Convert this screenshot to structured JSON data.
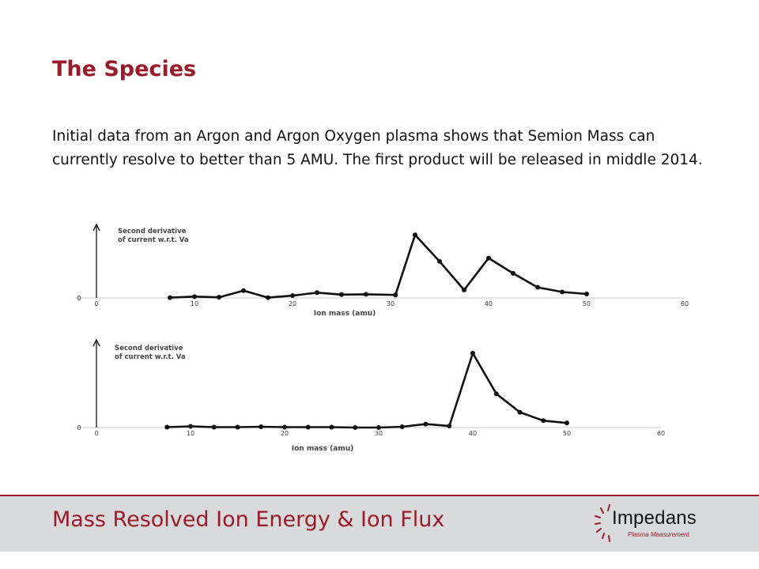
{
  "slide": {
    "title": "The Species",
    "body": "Initial data from an Argon and Argon Oxygen plasma shows that Semion Mass can currently resolve to better than 5 AMU. The first product will be released in middle 2014."
  },
  "footer": {
    "title": "Mass Resolved Ion Energy & Ion Flux",
    "logo_name": "Impedans",
    "logo_sub": "Plasma Measurement"
  },
  "colors": {
    "accent": "#9b1b2a",
    "footer_bg": "#d9dadb",
    "plot_line": "#111111"
  },
  "chart_data": [
    {
      "type": "line",
      "xlabel": "Ion mass (amu)",
      "ylabel": "Second derivative of current  w.r.t. Va",
      "xlim": [
        0,
        60
      ],
      "xticks": [
        "0",
        "10",
        "20",
        "30",
        "40",
        "50",
        "60"
      ],
      "y_origin_label": "0",
      "ylim": [
        0,
        10
      ],
      "grid": false,
      "series": [
        {
          "x": [
            7.5,
            10,
            12.5,
            15,
            17.5,
            20,
            22.5,
            25,
            27.5,
            30.5,
            32.5,
            35,
            37.5,
            40,
            42.5,
            45,
            47.5,
            50
          ],
          "y": [
            0.05,
            0.2,
            0.1,
            1.1,
            0.05,
            0.35,
            0.8,
            0.5,
            0.55,
            0.45,
            9.5,
            5.5,
            1.2,
            6.0,
            3.7,
            1.6,
            0.9,
            0.6
          ]
        }
      ]
    },
    {
      "type": "line",
      "xlabel": "Ion mass (amu)",
      "ylabel": "Second derivative of current  w.r.t. Va",
      "xlim": [
        0,
        60
      ],
      "xticks": [
        "0",
        "10",
        "20",
        "30",
        "40",
        "50",
        "60"
      ],
      "y_origin_label": "0",
      "ylim": [
        0,
        10
      ],
      "grid": false,
      "series": [
        {
          "x": [
            7.5,
            10,
            12.5,
            15,
            17.5,
            20,
            22.5,
            25,
            27.5,
            30,
            32.5,
            35,
            37.5,
            40,
            42.5,
            45,
            47.5,
            50
          ],
          "y": [
            0.05,
            0.15,
            0.05,
            0.05,
            0.1,
            0.05,
            0.05,
            0.05,
            0.0,
            0.0,
            0.1,
            0.45,
            0.2,
            9.7,
            4.4,
            2.0,
            0.9,
            0.6
          ]
        }
      ]
    }
  ]
}
